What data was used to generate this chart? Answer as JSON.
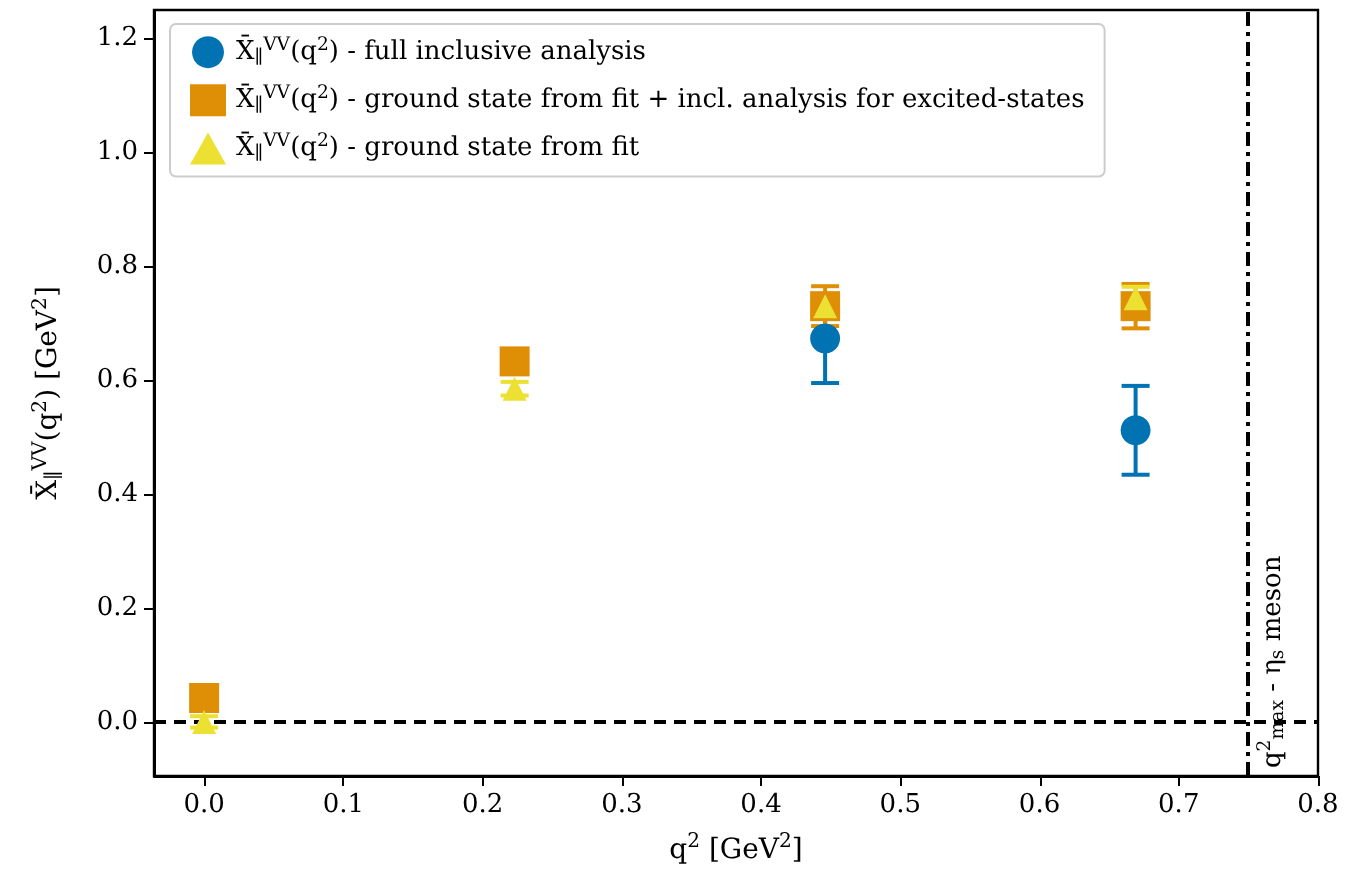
{
  "chart_data": {
    "type": "scatter",
    "xlabel": "q$^{2}$ [GeV$^{2}$]",
    "ylabel": "X̄$_{∥}$$^{VV}$(q$^{2}$) [GeV$^{2}$]",
    "series": [
      {
        "name": "X̄$_{∥}$$^{VV}$(q$^{2}$) - full inclusive analysis",
        "color": "#0173b2",
        "marker": "circle",
        "x": [
          0.446,
          0.669
        ],
        "values": [
          0.673,
          0.512
        ],
        "errors": [
          0.078,
          0.078
        ]
      },
      {
        "name": "X̄$_{∥}$$^{VV}$(q$^{2}$) - ground state from fit + incl. analysis for excited-states",
        "color": "#de8f05",
        "marker": "square",
        "x": [
          0,
          0.223,
          0.446,
          0.669
        ],
        "values": [
          0.042,
          0.633,
          0.73,
          0.73
        ],
        "errors": [
          0.018,
          0.02,
          0.035,
          0.039
        ]
      },
      {
        "name": "X̄$_{∥}$$^{VV}$(q$^{2}$) - ground state from fit",
        "color": "#ece133",
        "marker": "triangle",
        "x": [
          0,
          0.223,
          0.446,
          0.669
        ],
        "values": [
          0.0,
          0.585,
          0.73,
          0.744
        ],
        "errors": [
          0.01,
          0.012,
          0.02,
          0.02
        ]
      }
    ],
    "xlim": [
      -0.036,
      0.8
    ],
    "xticks": [
      {
        "value": 0,
        "label": "0.0"
      },
      0.1,
      0.2,
      0.3,
      0.4,
      0.5,
      0.6,
      0.7,
      0.8
    ],
    "ylim": [
      -0.095,
      1.25
    ],
    "yticks": [
      {
        "value": 0,
        "label": "0.0"
      },
      0.2,
      0.4,
      0.6,
      0.8,
      {
        "value": 1,
        "label": "1.0"
      },
      1.2
    ],
    "ref_lines": [
      {
        "axis": "y",
        "value": 0,
        "color": "#000000",
        "line_style": "dashed"
      },
      {
        "axis": "x",
        "value": 0.748,
        "color": "#000000",
        "line_style": "dashdot",
        "label": "q$^{2}$$_{max}$ - η$_{s}$ meson"
      }
    ],
    "grid": false,
    "legend": "top left"
  }
}
